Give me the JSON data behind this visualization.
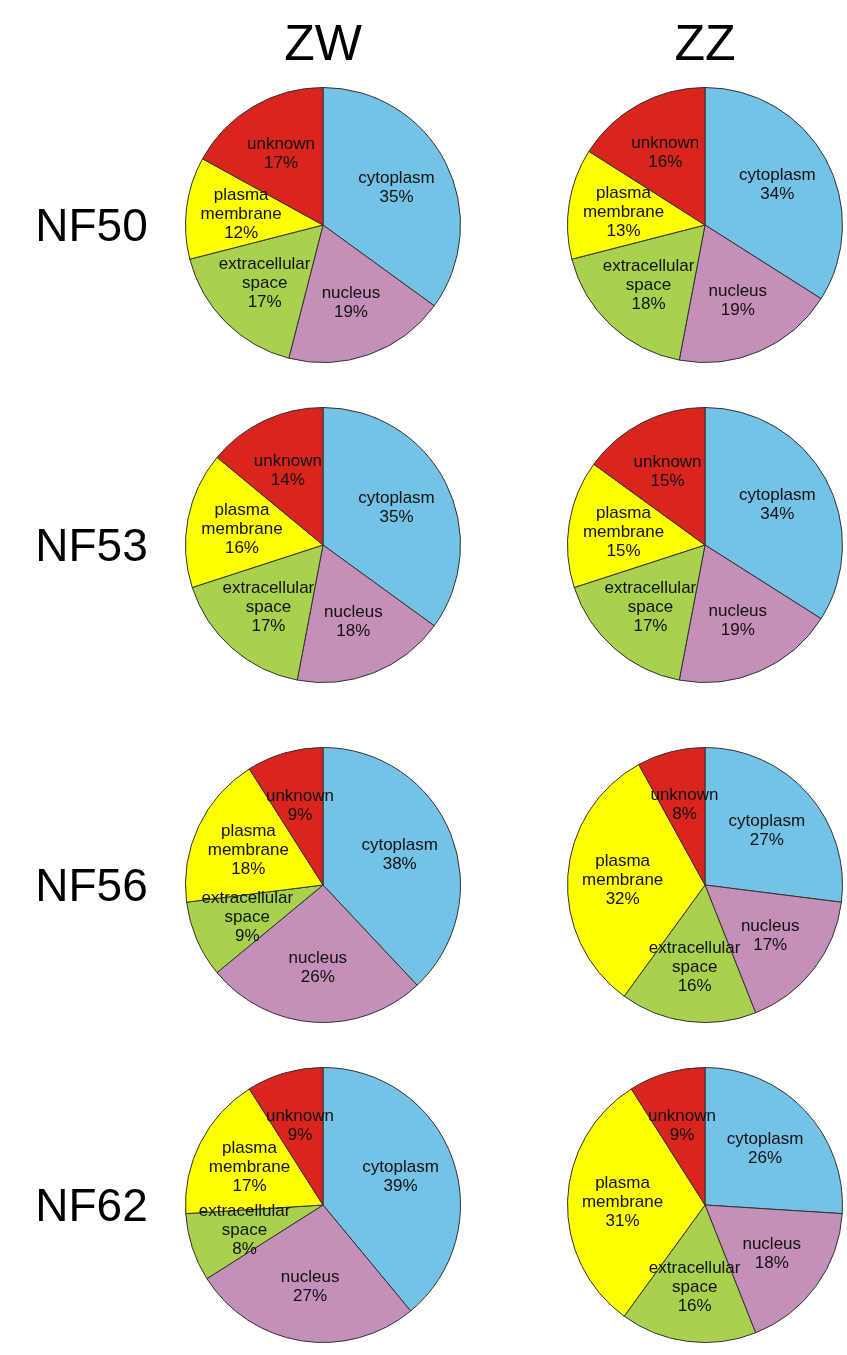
{
  "chart_data": [
    {
      "type": "pie",
      "title": "ZW",
      "ylabel": "NF50",
      "categories": [
        "cytoplasm",
        "nucleus",
        "extracellular space",
        "plasma membrane",
        "unknown"
      ],
      "values": [
        35,
        19,
        17,
        12,
        17
      ],
      "value_labels": [
        "35%",
        "19%",
        "17%",
        "12%",
        "17%"
      ],
      "colors": [
        "#74c2e6",
        "#c48fb8",
        "#a9d14e",
        "#ffff00",
        "#d9251d"
      ]
    },
    {
      "type": "pie",
      "title": "ZZ",
      "categories": [
        "cytoplasm",
        "nucleus",
        "extracellular space",
        "plasma membrane",
        "unknown"
      ],
      "values": [
        34,
        19,
        18,
        13,
        16
      ],
      "value_labels": [
        "34%",
        "19%",
        "18%",
        "13%",
        "16%"
      ],
      "colors": [
        "#74c2e6",
        "#c48fb8",
        "#a9d14e",
        "#ffff00",
        "#d9251d"
      ]
    },
    {
      "type": "pie",
      "ylabel": "NF53",
      "categories": [
        "cytoplasm",
        "nucleus",
        "extracellular space",
        "plasma membrane",
        "unknown"
      ],
      "values": [
        35,
        18,
        17,
        16,
        14
      ],
      "value_labels": [
        "35%",
        "18%",
        "17%",
        "16%",
        "14%"
      ],
      "colors": [
        "#74c2e6",
        "#c48fb8",
        "#a9d14e",
        "#ffff00",
        "#d9251d"
      ]
    },
    {
      "type": "pie",
      "categories": [
        "cytoplasm",
        "nucleus",
        "extracellular space",
        "plasma membrane",
        "unknown"
      ],
      "values": [
        34,
        19,
        17,
        15,
        15
      ],
      "value_labels": [
        "34%",
        "19%",
        "17%",
        "15%",
        "15%"
      ],
      "colors": [
        "#74c2e6",
        "#c48fb8",
        "#a9d14e",
        "#ffff00",
        "#d9251d"
      ]
    },
    {
      "type": "pie",
      "ylabel": "NF56",
      "categories": [
        "cytoplasm",
        "nucleus",
        "extracellular space",
        "plasma membrane",
        "unknown"
      ],
      "values": [
        38,
        26,
        9,
        18,
        9
      ],
      "value_labels": [
        "38%",
        "26%",
        "9%",
        "18%",
        "9%"
      ],
      "colors": [
        "#74c2e6",
        "#c48fb8",
        "#a9d14e",
        "#ffff00",
        "#d9251d"
      ]
    },
    {
      "type": "pie",
      "categories": [
        "cytoplasm",
        "nucleus",
        "extracellular space",
        "plasma membrane",
        "unknown"
      ],
      "values": [
        27,
        17,
        16,
        32,
        8
      ],
      "value_labels": [
        "27%",
        "17%",
        "16%",
        "32%",
        "8%"
      ],
      "colors": [
        "#74c2e6",
        "#c48fb8",
        "#a9d14e",
        "#ffff00",
        "#d9251d"
      ]
    },
    {
      "type": "pie",
      "ylabel": "NF62",
      "categories": [
        "cytoplasm",
        "nucleus",
        "extracellular space",
        "plasma membrane",
        "unknown"
      ],
      "values": [
        39,
        27,
        8,
        17,
        9
      ],
      "value_labels": [
        "39%",
        "27%",
        "8%",
        "17%",
        "9%"
      ],
      "colors": [
        "#74c2e6",
        "#c48fb8",
        "#a9d14e",
        "#ffff00",
        "#d9251d"
      ]
    },
    {
      "type": "pie",
      "categories": [
        "cytoplasm",
        "nucleus",
        "extracellular space",
        "plasma membrane",
        "unknown"
      ],
      "values": [
        26,
        18,
        16,
        31,
        9
      ],
      "value_labels": [
        "26%",
        "18%",
        "16%",
        "31%",
        "9%"
      ],
      "colors": [
        "#74c2e6",
        "#c48fb8",
        "#a9d14e",
        "#ffff00",
        "#d9251d"
      ]
    }
  ]
}
